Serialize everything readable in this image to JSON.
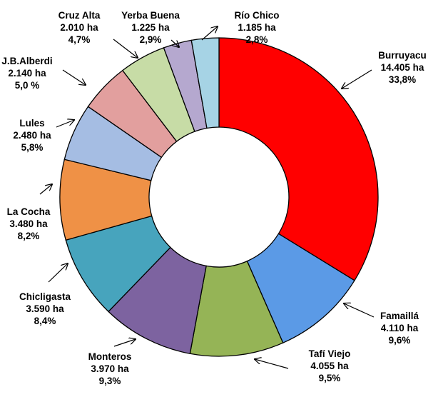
{
  "chart_data": {
    "type": "pie",
    "variant": "donut",
    "title": "",
    "unit": "ha",
    "slices": [
      {
        "name": "Burruyacu",
        "value": 14405,
        "value_label": "14.405 ha",
        "percent_label": "33,8%",
        "color": "#ff0000"
      },
      {
        "name": "Famaillá",
        "value": 4110,
        "value_label": "4.110 ha",
        "percent_label": "9,6%",
        "color": "#5b9ae6"
      },
      {
        "name": "Tafí Viejo",
        "value": 4055,
        "value_label": "4.055 ha",
        "percent_label": "9,5%",
        "color": "#95b456"
      },
      {
        "name": "Monteros",
        "value": 3970,
        "value_label": "3.970 ha",
        "percent_label": "9,3%",
        "color": "#7d63a0"
      },
      {
        "name": "Chicligasta",
        "value": 3590,
        "value_label": "3.590 ha",
        "percent_label": "8,4%",
        "color": "#47a4bd"
      },
      {
        "name": "La Cocha",
        "value": 3480,
        "value_label": "3.480 ha",
        "percent_label": "8,2%",
        "color": "#ef9146"
      },
      {
        "name": "Lules",
        "value": 2480,
        "value_label": "2.480 ha",
        "percent_label": "5,8%",
        "color": "#a5bde3"
      },
      {
        "name": "J.B.Alberdi",
        "value": 2140,
        "value_label": "2.140 ha",
        "percent_label": "5,0 %",
        "color": "#e29f9e"
      },
      {
        "name": "Cruz Alta",
        "value": 2010,
        "value_label": "2.010 ha",
        "percent_label": "4,7%",
        "color": "#c7dca6"
      },
      {
        "name": "Yerba Buena",
        "value": 1225,
        "value_label": "1.225 ha",
        "percent_label": "2,9%",
        "color": "#b5a8cf"
      },
      {
        "name": "Río Chico",
        "value": 1185,
        "value_label": "1.185 ha",
        "percent_label": "2,8%",
        "color": "#a6d3e5"
      }
    ]
  }
}
